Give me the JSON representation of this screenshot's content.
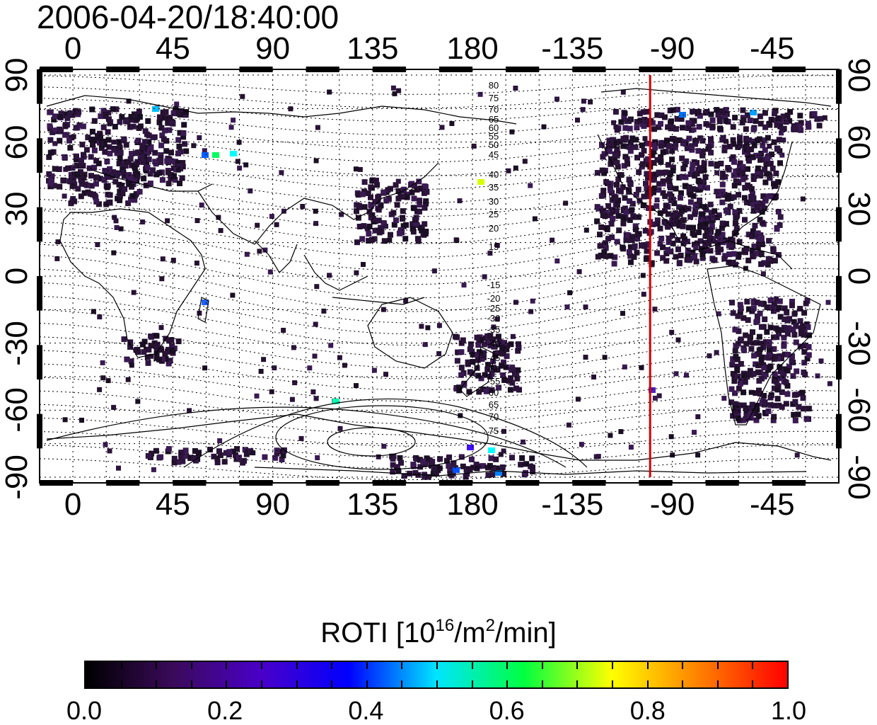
{
  "timestamp": "2006-04-20/18:40:00",
  "map": {
    "projection": "equirectangular",
    "lon_range": [
      -15,
      345
    ],
    "lat_range": [
      -90,
      90
    ],
    "grid": true,
    "red_line_longitude": -100,
    "red_line_color": "#d40000",
    "top_lon_labels": [
      "0",
      "45",
      "90",
      "135",
      "180",
      "-135",
      "-90",
      "-45"
    ],
    "bottom_lon_labels": [
      "0",
      "45",
      "90",
      "135",
      "180",
      "-135",
      "-90",
      "-45"
    ],
    "left_lat_labels": [
      "90",
      "60",
      "30",
      "0",
      "-30",
      "-60",
      "-90"
    ],
    "right_lat_labels": [
      "90",
      "60",
      "30",
      "0",
      "-30",
      "-60",
      "-90"
    ],
    "contour_labels_north": [
      "80",
      "75",
      "70",
      "65",
      "60",
      "55",
      "50",
      "45",
      "40",
      "35",
      "30",
      "25",
      "20",
      "15"
    ],
    "contour_labels_south": [
      "-15",
      "-20",
      "-25",
      "-30",
      "-35",
      "-40",
      "-45",
      "-50",
      "-55",
      "60",
      "65",
      "70",
      "75"
    ]
  },
  "colorbar": {
    "title_prefix": "ROTI  [10",
    "title_exp1": "16",
    "title_mid": "/m",
    "title_exp2": "2",
    "title_suffix": "/min]",
    "tick_labels": [
      "0.0",
      "0.2",
      "0.4",
      "0.6",
      "0.8",
      "1.0"
    ],
    "range": [
      0.0,
      1.0
    ],
    "colors": [
      "#000000",
      "#3a0a5a",
      "#4a00c8",
      "#0000ff",
      "#00e5ff",
      "#00ff40",
      "#ffff00",
      "#ff8000",
      "#ff0000"
    ]
  }
}
